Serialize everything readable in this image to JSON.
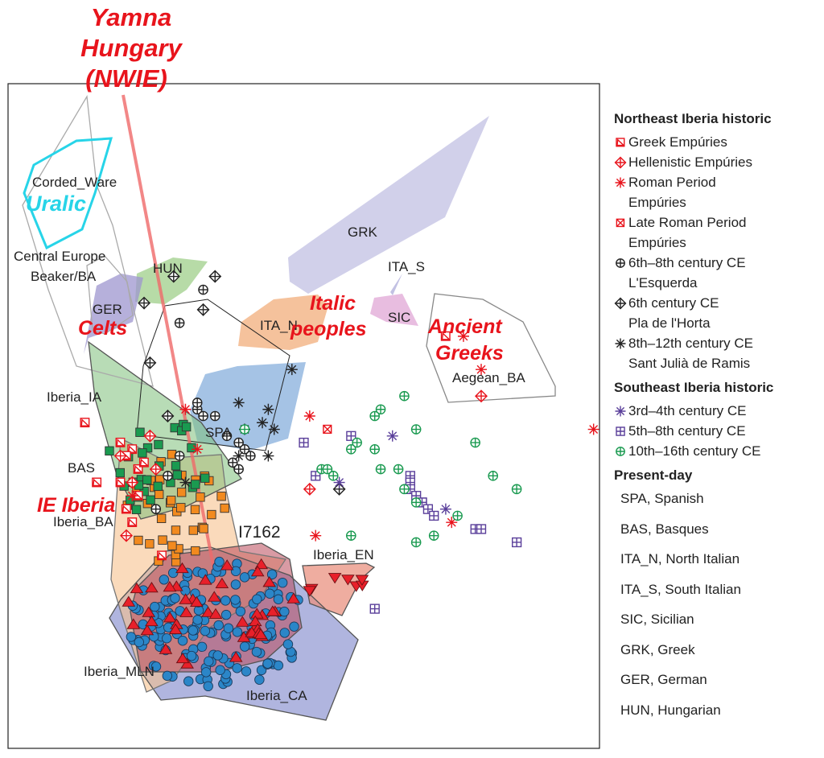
{
  "chart_data": {
    "type": "scatter",
    "title": "",
    "xlabel": "",
    "ylabel": "",
    "x_range": [
      0,
      100
    ],
    "y_range": [
      0,
      100
    ],
    "grid": false,
    "legend_position": "right",
    "annotations": [
      {
        "text": "Yamna",
        "color": "#e8141c"
      },
      {
        "text": "Hungary",
        "color": "#e8141c"
      },
      {
        "text": "(NWIE)",
        "color": "#e8141c"
      },
      {
        "text": "Uralic",
        "color": "#27d4e8"
      },
      {
        "text": "Celts",
        "color": "#e8141c"
      },
      {
        "text": "Italic",
        "color": "#e8141c"
      },
      {
        "text": "peoples",
        "color": "#e8141c"
      },
      {
        "text": "Ancient",
        "color": "#e8141c"
      },
      {
        "text": "Greeks",
        "color": "#e8141c"
      },
      {
        "text": "IE Iberia",
        "color": "#e8141c"
      }
    ],
    "cluster_labels": [
      "Corded_Ware",
      "Central Europe",
      "Beaker/BA",
      "HUN",
      "GER",
      "GRK",
      "ITA_S",
      "ITA_N",
      "SIC",
      "Aegean_BA",
      "Iberia_IA",
      "SPA",
      "BAS",
      "Iberia_BA",
      "I7162",
      "Iberia_EN",
      "Iberia_MLN",
      "Iberia_CA"
    ],
    "series": [
      {
        "name": "Greek Empúries",
        "marker": "box-triangle",
        "color": "#e8141c",
        "points": [
          [
            74,
            62
          ],
          [
            13,
            49
          ],
          [
            19,
            46
          ],
          [
            21,
            45
          ],
          [
            20,
            44
          ],
          [
            22,
            42
          ],
          [
            19,
            40
          ],
          [
            23,
            43
          ],
          [
            15,
            40
          ],
          [
            22,
            38
          ],
          [
            20,
            36
          ],
          [
            21,
            34
          ],
          [
            26,
            29
          ]
        ]
      },
      {
        "name": "Hellenistic Empúries",
        "marker": "diamond-cross",
        "color": "#e8141c",
        "points": [
          [
            80,
            53
          ],
          [
            19,
            44
          ],
          [
            24,
            47
          ],
          [
            25,
            42
          ],
          [
            21,
            40
          ],
          [
            51,
            39
          ],
          [
            20,
            32
          ]
        ]
      },
      {
        "name": "Roman Period Empúries",
        "marker": "asterisk",
        "color": "#e8141c",
        "points": [
          [
            77,
            62
          ],
          [
            80,
            57
          ],
          [
            51,
            50
          ],
          [
            30,
            51
          ],
          [
            32,
            45
          ],
          [
            99,
            48
          ],
          [
            21,
            38
          ],
          [
            75,
            34
          ],
          [
            52,
            32
          ]
        ]
      },
      {
        "name": "Late Roman Period Empúries",
        "marker": "box-x",
        "color": "#e8141c",
        "points": [
          [
            54,
            48
          ]
        ]
      },
      {
        "name": "6th–8th century CE L'Esquerda",
        "marker": "circle-plus",
        "color": "#222222",
        "points": [
          [
            29,
            64
          ],
          [
            33,
            69
          ],
          [
            32,
            51
          ],
          [
            33,
            50
          ],
          [
            27,
            41
          ],
          [
            25,
            36
          ],
          [
            29,
            44
          ],
          [
            38,
            43
          ],
          [
            39,
            42
          ],
          [
            40,
            45
          ],
          [
            41,
            44
          ],
          [
            39,
            46
          ],
          [
            37,
            47
          ],
          [
            35,
            50
          ],
          [
            32,
            52
          ]
        ]
      },
      {
        "name": "6th century CE Pla de l'Horta",
        "marker": "diamond-plus",
        "color": "#222222",
        "points": [
          [
            28,
            71
          ],
          [
            35,
            71
          ],
          [
            33,
            66
          ],
          [
            23,
            67
          ],
          [
            24,
            58
          ],
          [
            27,
            50
          ],
          [
            56,
            39
          ]
        ]
      },
      {
        "name": "8th–12th century CE Sant Julià de Ramis",
        "marker": "asterisk",
        "color": "#222222",
        "points": [
          [
            48,
            57
          ],
          [
            39,
            52
          ],
          [
            44,
            51
          ],
          [
            43,
            49
          ],
          [
            40,
            48
          ],
          [
            45,
            48
          ],
          [
            39,
            44
          ],
          [
            44,
            44
          ],
          [
            30,
            40
          ]
        ]
      },
      {
        "name": "3rd–4th century CE",
        "marker": "asterisk",
        "color": "#5a3f9a",
        "points": [
          [
            65,
            47
          ],
          [
            56,
            40
          ],
          [
            74,
            36
          ]
        ]
      },
      {
        "name": "5th–8th century CE",
        "marker": "box-plus",
        "color": "#5a3f9a",
        "points": [
          [
            50,
            46
          ],
          [
            58,
            47
          ],
          [
            52,
            41
          ],
          [
            68,
            41
          ],
          [
            68,
            40
          ],
          [
            68,
            39
          ],
          [
            69,
            38
          ],
          [
            70,
            37
          ],
          [
            70,
            37
          ],
          [
            71,
            36
          ],
          [
            72,
            35
          ],
          [
            79,
            33
          ],
          [
            80,
            33
          ],
          [
            86,
            31
          ],
          [
            62,
            21
          ]
        ]
      },
      {
        "name": "10th–16th century CE",
        "marker": "circle-plus",
        "color": "#1a9a50",
        "points": [
          [
            67,
            53
          ],
          [
            63,
            51
          ],
          [
            62,
            50
          ],
          [
            69,
            48
          ],
          [
            59,
            46
          ],
          [
            58,
            45
          ],
          [
            62,
            45
          ],
          [
            79,
            46
          ],
          [
            53,
            42
          ],
          [
            54,
            42
          ],
          [
            55,
            41
          ],
          [
            63,
            42
          ],
          [
            66,
            42
          ],
          [
            82,
            41
          ],
          [
            86,
            39
          ],
          [
            67,
            39
          ],
          [
            69,
            37
          ],
          [
            76,
            35
          ],
          [
            58,
            32
          ],
          [
            69,
            31
          ],
          [
            72,
            32
          ],
          [
            40,
            48
          ]
        ]
      }
    ],
    "clusters": [
      {
        "name": "Iberia_CA",
        "marker": "circle",
        "color": "#2b86c8",
        "n": 160
      },
      {
        "name": "Iberia_MLN",
        "marker": "triangle-down",
        "color": "#e8202a",
        "n": 45
      },
      {
        "name": "Iberia_EN",
        "marker": "triangle-down",
        "color": "#e8202a",
        "n": 7
      },
      {
        "name": "Iberia_BA",
        "marker": "square",
        "color": "#f28a1e",
        "n": 38
      },
      {
        "name": "Iberia_IA",
        "marker": "square",
        "color": "#1a9a50",
        "n": 30
      }
    ]
  },
  "legend": {
    "northeast_title": "Northeast Iberia historic",
    "northeast_items": [
      {
        "label": "Greek Empúries",
        "sym": "box-triangle",
        "color": "#e8141c"
      },
      {
        "label": "Hellenistic Empúries",
        "sym": "diamond-cross",
        "color": "#e8141c"
      },
      {
        "label": "Roman Period\nEmpúries",
        "sym": "asterisk",
        "color": "#e8141c"
      },
      {
        "label": "Late Roman Period\nEmpúries",
        "sym": "box-x",
        "color": "#e8141c"
      },
      {
        "label": "6th–8th century CE\nL'Esquerda",
        "sym": "circle-plus",
        "color": "#222222"
      },
      {
        "label": "6th century CE\nPla de l'Horta",
        "sym": "diamond-plus",
        "color": "#222222"
      },
      {
        "label": "8th–12th century CE\nSant Julià de Ramis",
        "sym": "asterisk",
        "color": "#222222"
      }
    ],
    "southeast_title": "Southeast Iberia historic",
    "southeast_items": [
      {
        "label": "3rd–4th century CE",
        "sym": "asterisk",
        "color": "#5a3f9a"
      },
      {
        "label": "5th–8th century CE",
        "sym": "box-plus",
        "color": "#5a3f9a"
      },
      {
        "label": "10th–16th century CE",
        "sym": "circle-plus",
        "color": "#1a9a50"
      }
    ],
    "present_title": "Present-day",
    "present_items": [
      "SPA, Spanish",
      "BAS, Basques",
      "ITA_N, North Italian",
      "ITA_S, South Italian",
      "SIC, Sicilian",
      "GRK,  Greek",
      "GER, German",
      "HUN, Hungarian"
    ]
  }
}
